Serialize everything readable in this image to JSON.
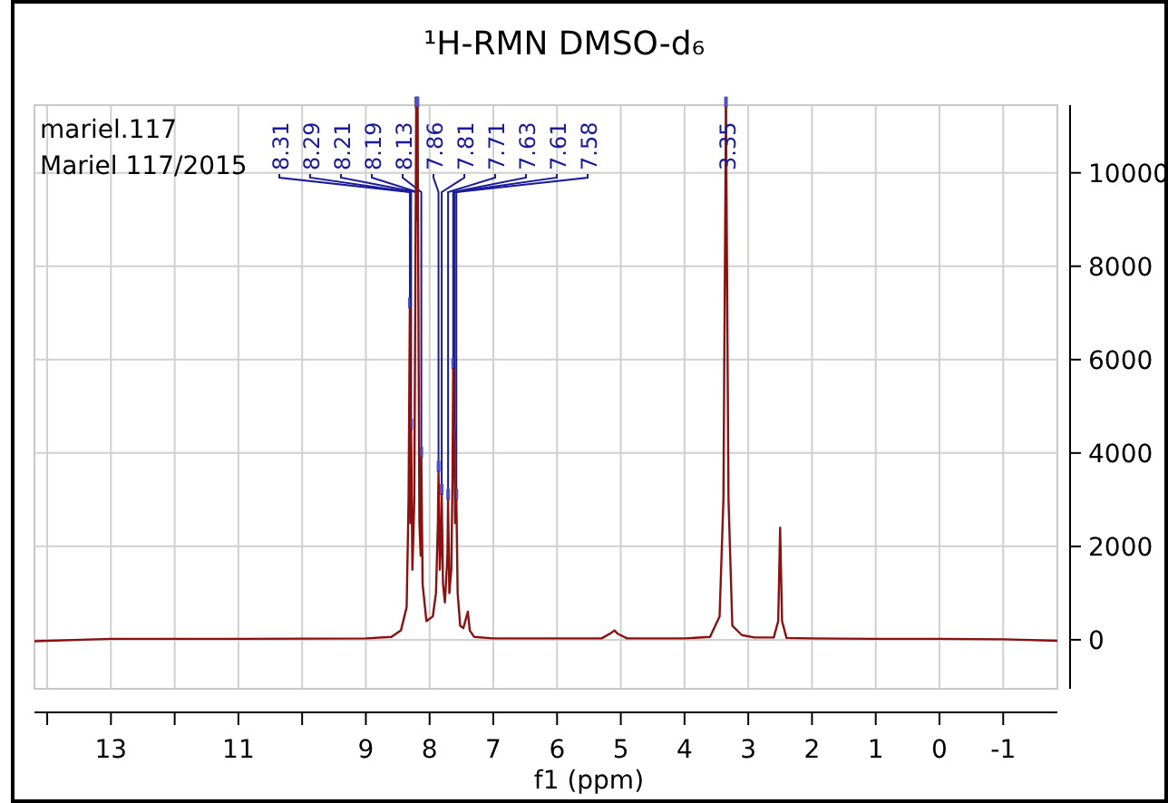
{
  "chart_data": {
    "type": "line",
    "title": "¹H-RMN DMSO-d₆",
    "xlabel": "f1 (ppm)",
    "xlim": [
      14.2,
      -1.85
    ],
    "xticks": [
      {
        "value": 14,
        "label": null
      },
      13,
      {
        "value": 12,
        "label": null
      },
      11,
      {
        "value": 10,
        "label": null
      },
      9,
      8,
      7,
      6,
      5,
      4,
      3,
      2,
      1,
      0,
      -1
    ],
    "ylim": [
      -1050,
      11450
    ],
    "yticks": [
      0,
      2000,
      4000,
      6000,
      8000,
      10000
    ],
    "grid": true,
    "marker": "none",
    "line_style": "solid",
    "series": [
      {
        "color": "#8b1010",
        "x": [
          14.2,
          13,
          11,
          9,
          8.6,
          8.45,
          8.36,
          8.33,
          8.31,
          8.3,
          8.29,
          8.27,
          8.24,
          8.21,
          8.2,
          8.19,
          8.16,
          8.14,
          8.13,
          8.11,
          8.05,
          7.95,
          7.9,
          7.87,
          7.86,
          7.84,
          7.82,
          7.81,
          7.79,
          7.76,
          7.72,
          7.71,
          7.69,
          7.66,
          7.64,
          7.63,
          7.62,
          7.61,
          7.6,
          7.58,
          7.56,
          7.52,
          7.47,
          7.42,
          7.4,
          7.37,
          7.3,
          7,
          6,
          5.3,
          5.15,
          5.1,
          5.05,
          4.9,
          4,
          3.6,
          3.45,
          3.39,
          3.35,
          3.31,
          3.25,
          3.1,
          2.9,
          2.6,
          2.53,
          2.5,
          2.47,
          2.4,
          2,
          1,
          0,
          -1,
          -1.85
        ],
        "values": [
          -30,
          20,
          20,
          30,
          60,
          200,
          700,
          3000,
          7100,
          2500,
          4500,
          1500,
          3000,
          11400,
          9000,
          11400,
          2500,
          1800,
          3900,
          1200,
          400,
          500,
          1000,
          2500,
          3600,
          1500,
          2200,
          3100,
          1200,
          800,
          1800,
          3000,
          1000,
          1500,
          3500,
          5800,
          3800,
          4300,
          2500,
          3000,
          1000,
          300,
          250,
          500,
          600,
          200,
          60,
          30,
          30,
          30,
          150,
          200,
          130,
          30,
          30,
          60,
          500,
          3000,
          11400,
          3000,
          300,
          100,
          50,
          50,
          400,
          2400,
          400,
          40,
          30,
          20,
          20,
          10,
          -20
        ]
      }
    ],
    "annotations": [
      "mariel.117",
      "Mariel 117/2015",
      {
        "text": "8.31",
        "x": 8.31,
        "y": 7100
      },
      {
        "text": "8.29",
        "x": 8.29,
        "y": 4500
      },
      {
        "text": "8.21",
        "x": 8.21,
        "y": 11400
      },
      {
        "text": "8.19",
        "x": 8.19,
        "y": 11400
      },
      {
        "text": "8.13",
        "x": 8.13,
        "y": 3900
      },
      {
        "text": "7.86",
        "x": 7.86,
        "y": 3600
      },
      {
        "text": "7.81",
        "x": 7.81,
        "y": 3100
      },
      {
        "text": "7.71",
        "x": 7.71,
        "y": 3000
      },
      {
        "text": "7.63",
        "x": 7.63,
        "y": 5800
      },
      {
        "text": "7.61",
        "x": 7.61,
        "y": 4300
      },
      {
        "text": "7.58",
        "x": 7.58,
        "y": 3000
      },
      {
        "text": "3.35",
        "x": 3.35,
        "y": 11400
      }
    ]
  }
}
